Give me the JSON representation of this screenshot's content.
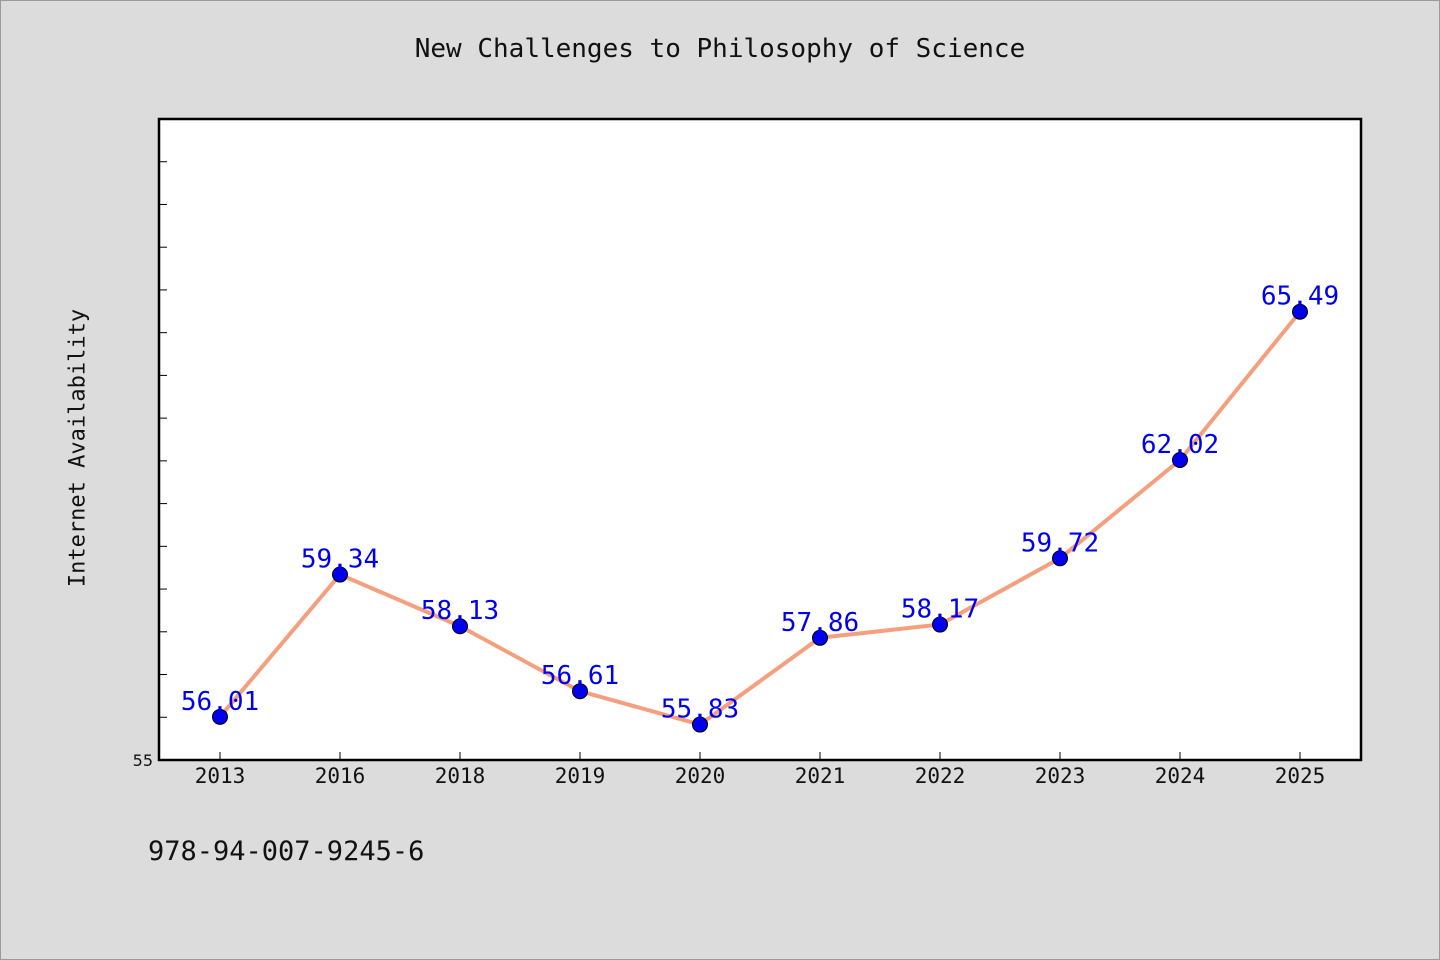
{
  "chart_data": {
    "type": "line",
    "title": "New Challenges to Philosophy of Science",
    "xlabel": "",
    "ylabel": "Internet Availability",
    "categories": [
      "2013",
      "2016",
      "2018",
      "2019",
      "2020",
      "2021",
      "2022",
      "2023",
      "2024",
      "2025"
    ],
    "values": [
      56.01,
      59.34,
      58.13,
      56.61,
      55.83,
      57.86,
      58.17,
      59.72,
      62.02,
      65.49
    ],
    "data_labels": [
      "56.01",
      "59.34",
      "58.13",
      "56.61",
      "55.83",
      "57.86",
      "58.17",
      "59.72",
      "62.02",
      "65.49"
    ],
    "ylim": [
      55,
      70
    ],
    "yticks_labeled": [
      {
        "value": 55,
        "label": "55"
      }
    ],
    "y_minor_step": 1,
    "grid": false,
    "line_color": "#f4a07f",
    "marker_color": "#0000ee",
    "label_color": "#0000ee"
  },
  "footer": {
    "isbn": "978-94-007-9245-6"
  }
}
